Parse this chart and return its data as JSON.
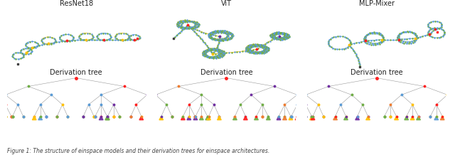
{
  "figsize": [
    6.4,
    2.18
  ],
  "dpi": 100,
  "background_color": "#ffffff",
  "caption": "Figure 1: The structure of einspace models and their derivation trees for einspace architectures.",
  "titles_top": [
    "ResNet18",
    "ViT",
    "MLP-Mixer"
  ],
  "titles_bottom": [
    "Derivation tree",
    "Derivation tree",
    "Derivation tree"
  ],
  "colors": {
    "blue": "#5B9BD5",
    "green": "#70AD47",
    "red": "#FF2020",
    "yellow": "#FFC000",
    "purple": "#7030A0",
    "orange": "#ED7D31",
    "gray": "#808080",
    "dark": "#404040",
    "line_blue": "#5B9BD5",
    "line_yellow": "#FFC000",
    "line_green": "#70AD47"
  },
  "title_fontsize": 7,
  "caption_fontsize": 5.5,
  "caption_color": "#444444"
}
